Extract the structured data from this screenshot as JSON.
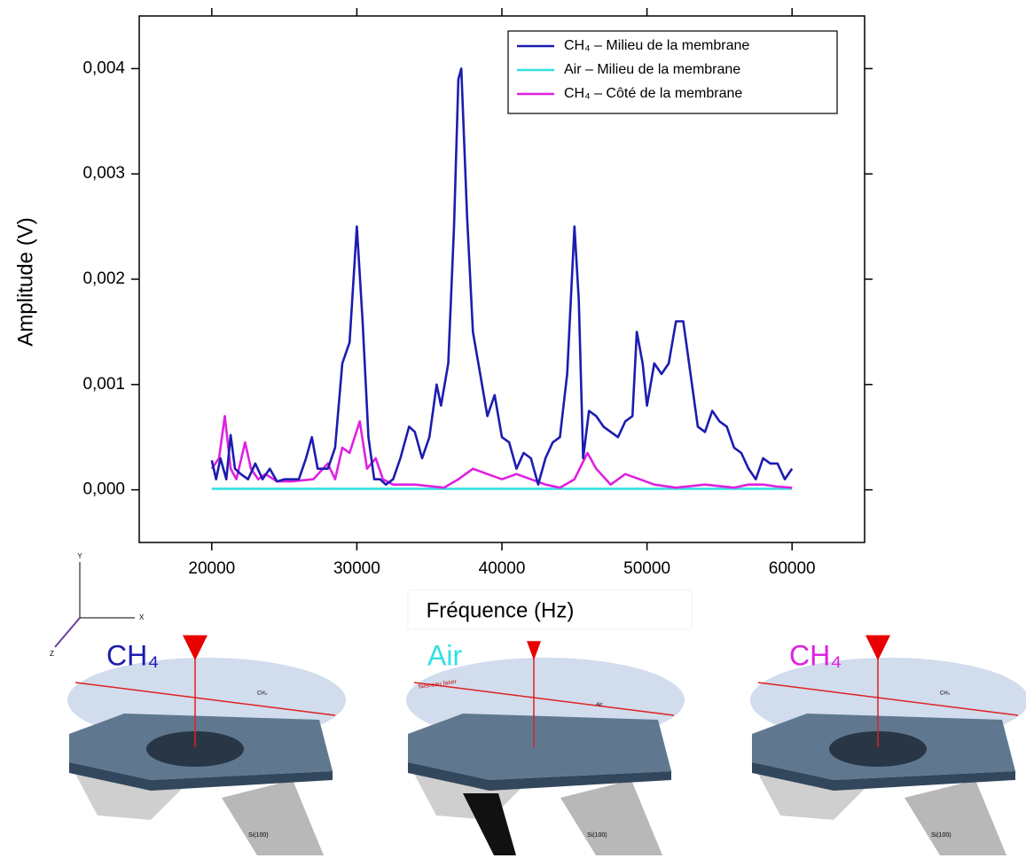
{
  "chart_data": {
    "type": "line",
    "xlabel": "Fréquence (Hz)",
    "ylabel": "Amplitude (V)",
    "xlim": [
      15000,
      65000
    ],
    "ylim": [
      -0.0005,
      0.0045
    ],
    "xticks": [
      20000,
      30000,
      40000,
      50000,
      60000
    ],
    "yticks": [
      {
        "value": 0,
        "label": "0,000"
      },
      {
        "value": 0.001,
        "label": "0,001"
      },
      {
        "value": 0.002,
        "label": "0,002"
      },
      {
        "value": 0.003,
        "label": "0,003"
      },
      {
        "value": 0.004,
        "label": "0,004"
      }
    ],
    "legend": "upper right",
    "series": [
      {
        "name": "CH₄ – Milieu de la membrane",
        "color": "#1c1cb0",
        "x": [
          20000,
          20300,
          20600,
          21000,
          21300,
          21600,
          22000,
          22500,
          23000,
          23500,
          24000,
          24500,
          25000,
          26000,
          26500,
          26900,
          27300,
          28000,
          28500,
          29000,
          29500,
          30000,
          30400,
          30800,
          31200,
          31600,
          32000,
          32500,
          33000,
          33600,
          34000,
          34500,
          35000,
          35500,
          35800,
          36300,
          36700,
          37000,
          37200,
          37600,
          38000,
          38500,
          39000,
          39500,
          40000,
          40500,
          41000,
          41500,
          42000,
          42500,
          43000,
          43500,
          44000,
          44500,
          45000,
          45300,
          45600,
          46000,
          46500,
          47000,
          47500,
          48000,
          48500,
          49000,
          49300,
          49700,
          50000,
          50500,
          51000,
          51500,
          52000,
          52500,
          53000,
          53500,
          54000,
          54500,
          55000,
          55500,
          56000,
          56500,
          57000,
          57500,
          58000,
          58500,
          59000,
          59500,
          60000
        ],
        "values": [
          0.00028,
          0.0001,
          0.0003,
          0.0001,
          0.00052,
          0.0002,
          0.00015,
          0.0001,
          0.00025,
          0.0001,
          0.0002,
          8e-05,
          0.0001,
          0.0001,
          0.0003,
          0.0005,
          0.0002,
          0.0002,
          0.0004,
          0.0012,
          0.0014,
          0.0025,
          0.0016,
          0.0005,
          0.0001,
          0.0001,
          5e-05,
          0.0001,
          0.0003,
          0.0006,
          0.00055,
          0.0003,
          0.0005,
          0.001,
          0.0008,
          0.0012,
          0.0025,
          0.0039,
          0.004,
          0.0026,
          0.0015,
          0.0011,
          0.0007,
          0.0009,
          0.0005,
          0.00045,
          0.0002,
          0.00035,
          0.0003,
          5e-05,
          0.0003,
          0.00045,
          0.0005,
          0.0011,
          0.0025,
          0.0018,
          0.0003,
          0.00075,
          0.0007,
          0.0006,
          0.00055,
          0.0005,
          0.00065,
          0.0007,
          0.0015,
          0.0012,
          0.0008,
          0.0012,
          0.0011,
          0.0012,
          0.0016,
          0.0016,
          0.0011,
          0.0006,
          0.00055,
          0.00075,
          0.00065,
          0.0006,
          0.0004,
          0.00035,
          0.0002,
          0.0001,
          0.0003,
          0.00025,
          0.00025,
          0.0001,
          0.0002
        ]
      },
      {
        "name": "Air – Milieu de la membrane",
        "color": "#33e0e0",
        "x": [
          20000,
          25000,
          30000,
          35000,
          40000,
          45000,
          50000,
          55000,
          60000
        ],
        "values": [
          1e-05,
          1e-05,
          1e-05,
          1e-05,
          1e-05,
          1e-05,
          1e-05,
          1e-05,
          1e-05
        ]
      },
      {
        "name": "CH₄ – Côté  de la membrane",
        "color": "#e020e0",
        "x": [
          20000,
          20500,
          20900,
          21300,
          21700,
          22300,
          22700,
          23200,
          23700,
          24500,
          25500,
          27000,
          28000,
          28500,
          29000,
          29500,
          30200,
          30700,
          31300,
          31800,
          32500,
          34000,
          36000,
          37000,
          38000,
          39000,
          40000,
          41000,
          42000,
          43000,
          44000,
          45000,
          45900,
          46500,
          47500,
          48500,
          49500,
          50500,
          52000,
          54000,
          56000,
          57000,
          58000,
          59000,
          60000
        ],
        "values": [
          0.0002,
          0.0003,
          0.0007,
          0.0002,
          0.0001,
          0.00045,
          0.0002,
          0.0001,
          0.00015,
          8e-05,
          8e-05,
          0.0001,
          0.00025,
          0.0001,
          0.0004,
          0.00035,
          0.00065,
          0.0002,
          0.0003,
          0.0001,
          5e-05,
          5e-05,
          2e-05,
          0.0001,
          0.0002,
          0.00015,
          0.0001,
          0.00015,
          0.0001,
          5e-05,
          2e-05,
          0.0001,
          0.00035,
          0.0002,
          5e-05,
          0.00015,
          0.0001,
          5e-05,
          2e-05,
          5e-05,
          2e-05,
          5e-05,
          5e-05,
          3e-05,
          2e-05
        ]
      }
    ]
  },
  "diagram": {
    "axes": [
      "Y",
      "X",
      "Z"
    ],
    "panels": [
      {
        "label": "CH₄",
        "color": "#1c1cb0",
        "note": "CH₄",
        "substrate": "Si(100)"
      },
      {
        "label": "Air",
        "color": "#33e0e0",
        "beam": "faisceau laser",
        "note": "Air",
        "substrate": "Si(100)"
      },
      {
        "label": "CH₄",
        "color": "#e020e0",
        "note": "CH₄",
        "substrate": "Si(100)"
      }
    ]
  }
}
